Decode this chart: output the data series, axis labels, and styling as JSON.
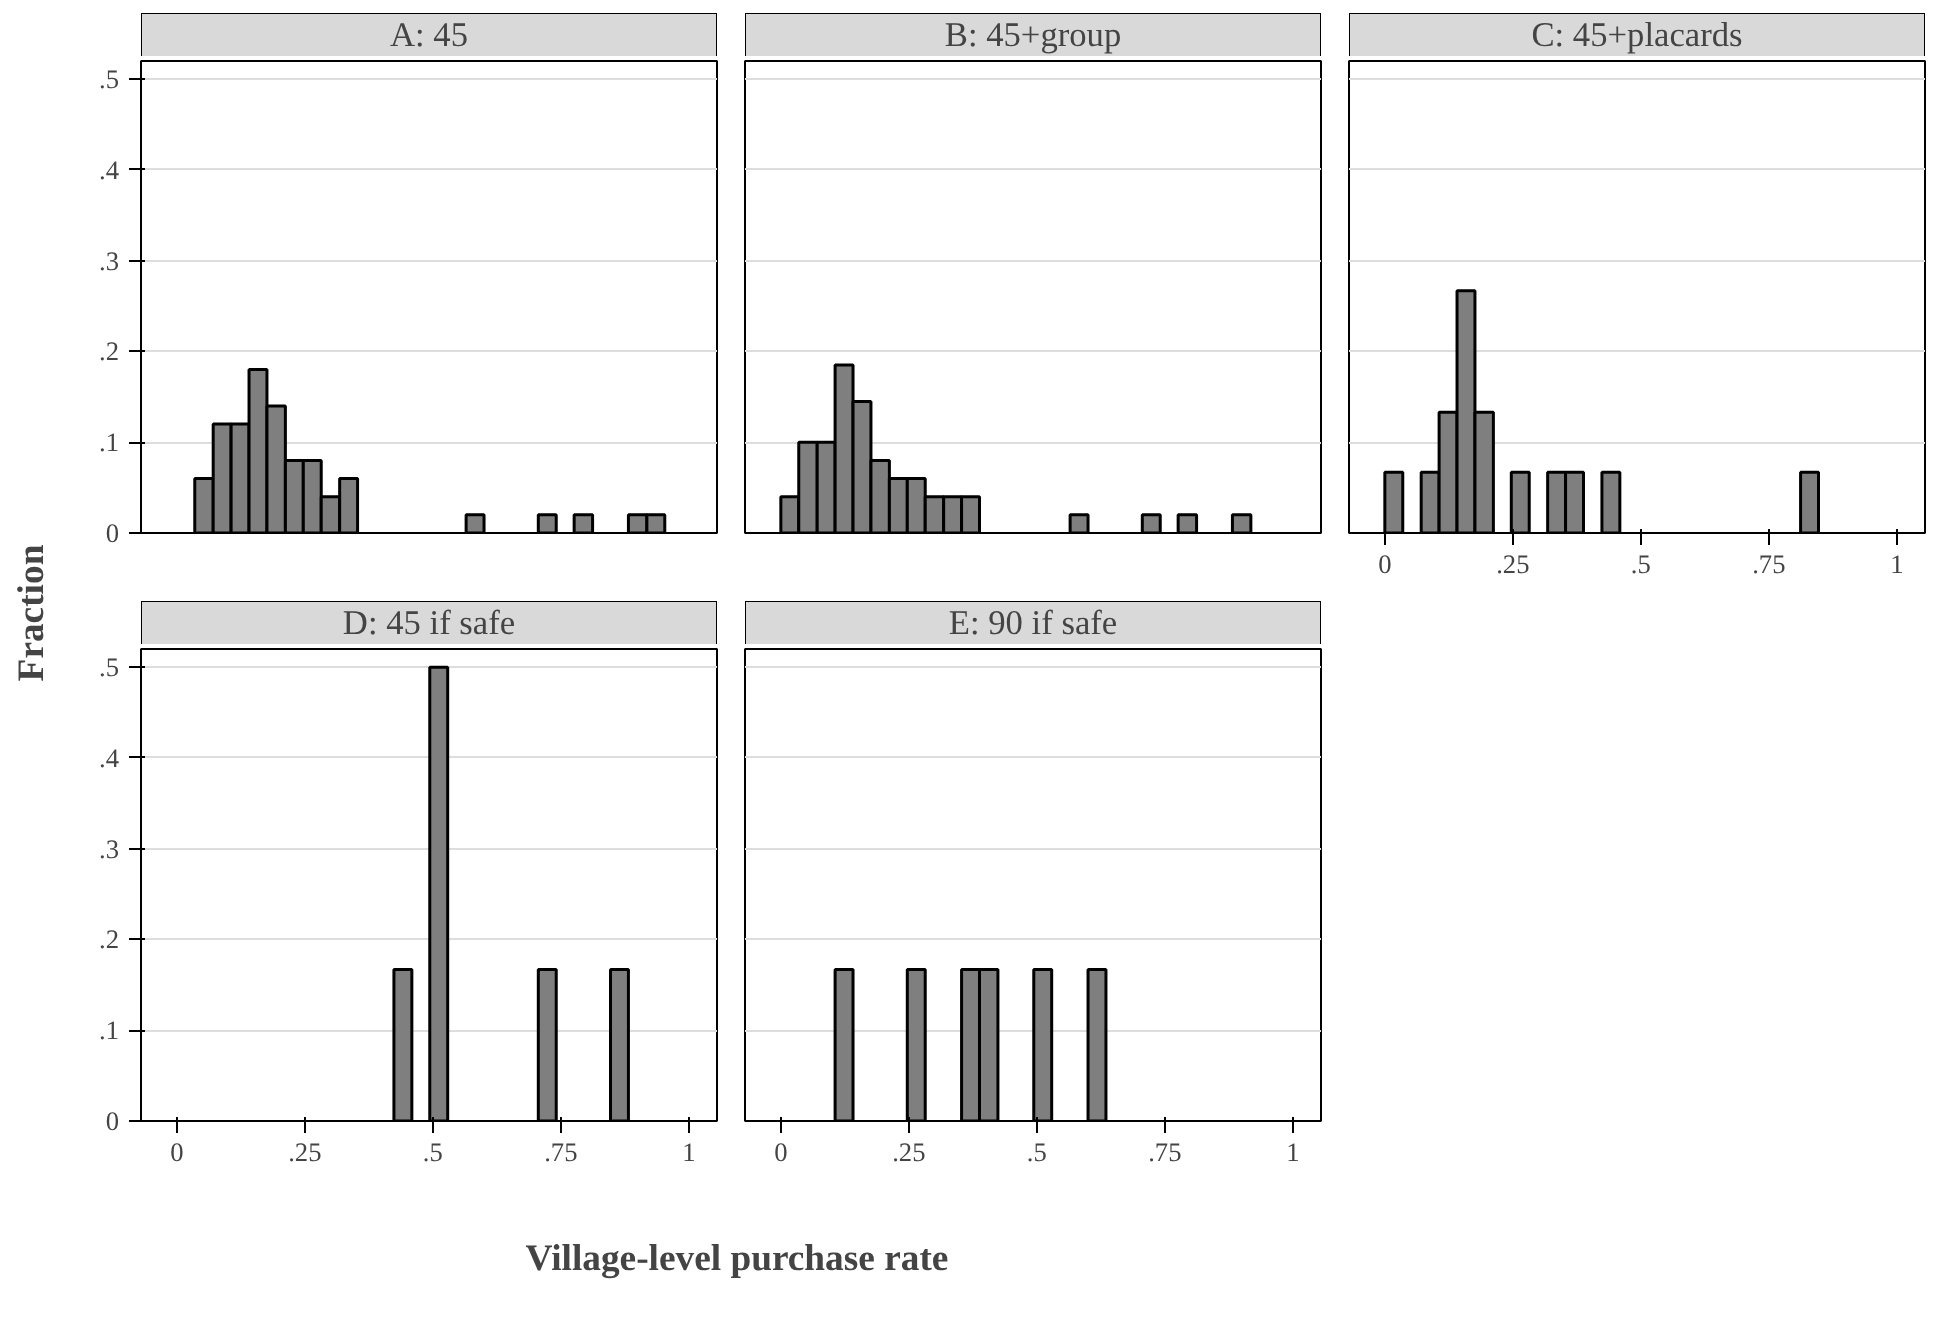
{
  "chart_data": [
    {
      "type": "histogram",
      "title": "A: 45",
      "ylabel": "Fraction",
      "color": "#7f7f7f",
      "bins": [
        0.035,
        0.071,
        0.106,
        0.141,
        0.176,
        0.212,
        0.247,
        0.282,
        0.318,
        0.353,
        0.565,
        0.6,
        0.706,
        0.741,
        0.776,
        0.812,
        0.882,
        0.918,
        0.953
      ],
      "values": [
        0.06,
        0.12,
        0.12,
        0.18,
        0.14,
        0.08,
        0.08,
        0.04,
        0.06,
        0,
        0.02,
        0,
        0.02,
        0,
        0.02,
        0,
        0.02,
        0.02
      ],
      "xlim": [
        -0.07,
        1.055
      ],
      "ylim": [
        0,
        0.52
      ],
      "yticks": [
        0,
        {
          "value": 0.1,
          "label": ".1"
        },
        {
          "value": 0.2,
          "label": ".2"
        },
        {
          "value": 0.3,
          "label": ".3"
        },
        {
          "value": 0.4,
          "label": ".4"
        },
        {
          "value": 0.5,
          "label": ".5"
        }
      ],
      "grid": "y",
      "tick_labels": "y"
    },
    {
      "type": "histogram",
      "title": "B: 45+group",
      "color": "#7f7f7f",
      "bins": [
        0,
        0.035,
        0.071,
        0.106,
        0.141,
        0.176,
        0.212,
        0.247,
        0.282,
        0.318,
        0.353,
        0.388,
        0.565,
        0.6,
        0.706,
        0.741,
        0.776,
        0.812,
        0.882,
        0.918
      ],
      "values": [
        0.04,
        0.1,
        0.1,
        0.185,
        0.145,
        0.08,
        0.06,
        0.06,
        0.04,
        0.04,
        0.04,
        0,
        0.02,
        0,
        0.02,
        0,
        0.02,
        0,
        0.02
      ],
      "xlim": [
        -0.07,
        1.055
      ],
      "ylim": [
        0,
        0.52
      ],
      "grid": "y",
      "tick_labels": false
    },
    {
      "type": "histogram",
      "title": "C: 45+placards",
      "color": "#7f7f7f",
      "bins": [
        0,
        0.035,
        0.071,
        0.106,
        0.141,
        0.176,
        0.212,
        0.247,
        0.282,
        0.318,
        0.353,
        0.388,
        0.424,
        0.459,
        0.812,
        0.847
      ],
      "values": [
        0.067,
        0,
        0.067,
        0.133,
        0.267,
        0.133,
        0,
        0.067,
        0,
        0.067,
        0.067,
        0,
        0.067,
        0,
        0.067
      ],
      "xlim": [
        -0.07,
        1.055
      ],
      "ylim": [
        0,
        0.52
      ],
      "xticks": [
        0,
        {
          "value": 0.25,
          "label": ".25"
        },
        {
          "value": 0.5,
          "label": ".5"
        },
        {
          "value": 0.75,
          "label": ".75"
        },
        1
      ],
      "grid": "y",
      "tick_labels": "x"
    },
    {
      "type": "histogram",
      "title": "D: 45 if safe",
      "xlabel": "Village-level purchase rate",
      "color": "#7f7f7f",
      "bins": [
        0.424,
        0.459,
        0.494,
        0.529,
        0.706,
        0.741,
        0.847,
        0.882
      ],
      "values": [
        0.167,
        0,
        0.5,
        0,
        0.167,
        0,
        0.167
      ],
      "xlim": [
        -0.07,
        1.055
      ],
      "ylim": [
        0,
        0.52
      ],
      "xticks": [
        0,
        {
          "value": 0.25,
          "label": ".25"
        },
        {
          "value": 0.5,
          "label": ".5"
        },
        {
          "value": 0.75,
          "label": ".75"
        },
        1
      ],
      "yticks": [
        0,
        {
          "value": 0.1,
          "label": ".1"
        },
        {
          "value": 0.2,
          "label": ".2"
        },
        {
          "value": 0.3,
          "label": ".3"
        },
        {
          "value": 0.4,
          "label": ".4"
        },
        {
          "value": 0.5,
          "label": ".5"
        }
      ],
      "grid": "y"
    },
    {
      "type": "histogram",
      "title": "E: 90 if safe",
      "color": "#7f7f7f",
      "bins": [
        0.106,
        0.141,
        0.247,
        0.282,
        0.353,
        0.388,
        0.424,
        0.494,
        0.529,
        0.6,
        0.635
      ],
      "values": [
        0.167,
        0,
        0.167,
        0,
        0.167,
        0.167,
        0,
        0.167,
        0,
        0.167
      ],
      "xlim": [
        -0.07,
        1.055
      ],
      "ylim": [
        0,
        0.52
      ],
      "xticks": [
        0,
        {
          "value": 0.25,
          "label": ".25"
        },
        {
          "value": 0.5,
          "label": ".5"
        },
        {
          "value": 0.75,
          "label": ".75"
        },
        1
      ],
      "grid": "y",
      "tick_labels": "x"
    }
  ]
}
